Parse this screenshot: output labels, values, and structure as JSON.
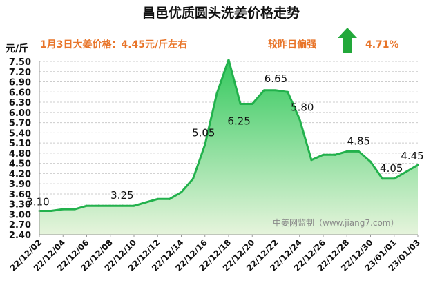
{
  "chart_data": {
    "type": "area",
    "title": "昌邑优质圆头洗姜价格走势",
    "ylabel": "元/斤",
    "ylim": [
      2.4,
      7.5
    ],
    "yticks": [
      2.4,
      2.7,
      3.0,
      3.3,
      3.6,
      3.9,
      4.2,
      4.5,
      4.8,
      5.1,
      5.4,
      5.7,
      6.0,
      6.3,
      6.6,
      6.9,
      7.2,
      7.5
    ],
    "xticks": [
      "22/12/02",
      "22/12/04",
      "22/12/06",
      "22/12/08",
      "22/12/10",
      "22/12/12",
      "22/12/14",
      "22/12/16",
      "22/12/18",
      "22/12/20",
      "22/12/22",
      "22/12/24",
      "22/12/26",
      "22/12/28",
      "22/12/30",
      "23/01/01",
      "23/01/03"
    ],
    "x": [
      "22/12/02",
      "22/12/03",
      "22/12/04",
      "22/12/05",
      "22/12/06",
      "22/12/07",
      "22/12/08",
      "22/12/09",
      "22/12/10",
      "22/12/11",
      "22/12/12",
      "22/12/13",
      "22/12/14",
      "22/12/15",
      "22/12/16",
      "22/12/17",
      "22/12/18",
      "22/12/19",
      "22/12/20",
      "22/12/21",
      "22/12/22",
      "22/12/23",
      "22/12/24",
      "22/12/25",
      "22/12/26",
      "22/12/27",
      "22/12/28",
      "22/12/29",
      "22/12/30",
      "22/12/31",
      "23/01/01",
      "23/01/02",
      "23/01/03"
    ],
    "series": [
      {
        "values": [
          3.1,
          3.1,
          3.15,
          3.15,
          3.25,
          3.25,
          3.25,
          3.25,
          3.25,
          3.35,
          3.45,
          3.45,
          3.65,
          4.05,
          5.05,
          6.55,
          7.55,
          6.25,
          6.25,
          6.65,
          6.65,
          6.6,
          5.8,
          4.6,
          4.75,
          4.75,
          4.85,
          4.85,
          4.55,
          4.05,
          4.05,
          4.25,
          4.45
        ]
      }
    ],
    "data_labels": [
      {
        "index": 0,
        "text": "3.10"
      },
      {
        "index": 7,
        "text": "3.25"
      },
      {
        "index": 14,
        "text": "5.05"
      },
      {
        "index": 17,
        "text": "6.25"
      },
      {
        "index": 20,
        "text": "6.65"
      },
      {
        "index": 22,
        "text": "5.80"
      },
      {
        "index": 27,
        "text": "4.85"
      },
      {
        "index": 30,
        "text": "4.05"
      },
      {
        "index": 32,
        "text": "4.45"
      }
    ],
    "grid": true,
    "colors": {
      "line": "#22b14c",
      "fill_top": "#34c95e",
      "fill_bottom": "#e6f4dc",
      "grid": "#cccccc",
      "accent": "#e8752a",
      "arrow": "#22a83a"
    }
  },
  "header": {
    "price_note": "1月3日大姜价格：4.45元/斤左右",
    "trend_text": "较昨日偏强",
    "trend_pct": "4.71%",
    "trend_icon": "up-arrow-icon"
  },
  "watermark": "中姜网监制（www.jiang7.com）"
}
